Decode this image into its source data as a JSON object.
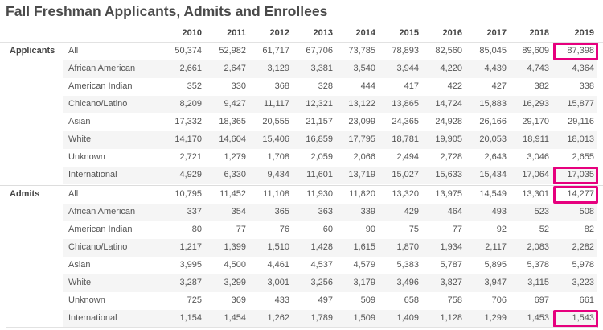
{
  "title": "Fall Freshman Applicants, Admits and Enrollees",
  "highlight_color": "#e6007e",
  "years": [
    "2010",
    "2011",
    "2012",
    "2013",
    "2014",
    "2015",
    "2016",
    "2017",
    "2018",
    "2019"
  ],
  "sections": [
    {
      "label": "Applicants",
      "rows": [
        {
          "label": "All",
          "values": [
            "50,374",
            "52,982",
            "61,717",
            "67,706",
            "73,785",
            "78,893",
            "82,560",
            "85,045",
            "89,609",
            "87,398"
          ],
          "highlight_last": true
        },
        {
          "label": "African American",
          "values": [
            "2,661",
            "2,647",
            "3,129",
            "3,381",
            "3,540",
            "3,944",
            "4,220",
            "4,439",
            "4,743",
            "4,364"
          ]
        },
        {
          "label": "American Indian",
          "values": [
            "352",
            "330",
            "368",
            "328",
            "444",
            "417",
            "422",
            "427",
            "382",
            "338"
          ]
        },
        {
          "label": "Chicano/Latino",
          "values": [
            "8,209",
            "9,427",
            "11,117",
            "12,321",
            "13,122",
            "13,865",
            "14,724",
            "15,883",
            "16,293",
            "15,877"
          ]
        },
        {
          "label": "Asian",
          "values": [
            "17,332",
            "18,365",
            "20,555",
            "21,157",
            "23,099",
            "24,365",
            "24,928",
            "26,166",
            "29,170",
            "29,116"
          ]
        },
        {
          "label": "White",
          "values": [
            "14,170",
            "14,604",
            "15,406",
            "16,859",
            "17,795",
            "18,781",
            "19,905",
            "20,053",
            "18,911",
            "18,013"
          ]
        },
        {
          "label": "Unknown",
          "values": [
            "2,721",
            "1,279",
            "1,708",
            "2,059",
            "2,066",
            "2,494",
            "2,728",
            "2,643",
            "3,046",
            "2,655"
          ]
        },
        {
          "label": "International",
          "values": [
            "4,929",
            "6,330",
            "9,434",
            "11,601",
            "13,719",
            "15,027",
            "15,633",
            "15,434",
            "17,064",
            "17,035"
          ],
          "highlight_last": true
        }
      ]
    },
    {
      "label": "Admits",
      "rows": [
        {
          "label": "All",
          "values": [
            "10,795",
            "11,452",
            "11,108",
            "11,930",
            "11,820",
            "13,320",
            "13,975",
            "14,549",
            "13,301",
            "14,277"
          ],
          "highlight_last": true
        },
        {
          "label": "African American",
          "values": [
            "337",
            "354",
            "365",
            "363",
            "339",
            "429",
            "464",
            "493",
            "523",
            "508"
          ]
        },
        {
          "label": "American Indian",
          "values": [
            "80",
            "77",
            "76",
            "60",
            "90",
            "75",
            "77",
            "92",
            "52",
            "82"
          ]
        },
        {
          "label": "Chicano/Latino",
          "values": [
            "1,217",
            "1,399",
            "1,510",
            "1,428",
            "1,615",
            "1,870",
            "1,934",
            "2,117",
            "2,083",
            "2,282"
          ]
        },
        {
          "label": "Asian",
          "values": [
            "3,995",
            "4,500",
            "4,461",
            "4,537",
            "4,579",
            "5,383",
            "5,787",
            "5,895",
            "5,378",
            "5,978"
          ]
        },
        {
          "label": "White",
          "values": [
            "3,287",
            "3,299",
            "3,001",
            "3,256",
            "3,179",
            "3,496",
            "3,827",
            "3,947",
            "3,115",
            "3,223"
          ]
        },
        {
          "label": "Unknown",
          "values": [
            "725",
            "369",
            "433",
            "497",
            "509",
            "658",
            "758",
            "706",
            "697",
            "661"
          ]
        },
        {
          "label": "International",
          "values": [
            "1,154",
            "1,454",
            "1,262",
            "1,789",
            "1,509",
            "1,409",
            "1,128",
            "1,299",
            "1,453",
            "1,543"
          ],
          "highlight_last": true
        }
      ]
    }
  ]
}
